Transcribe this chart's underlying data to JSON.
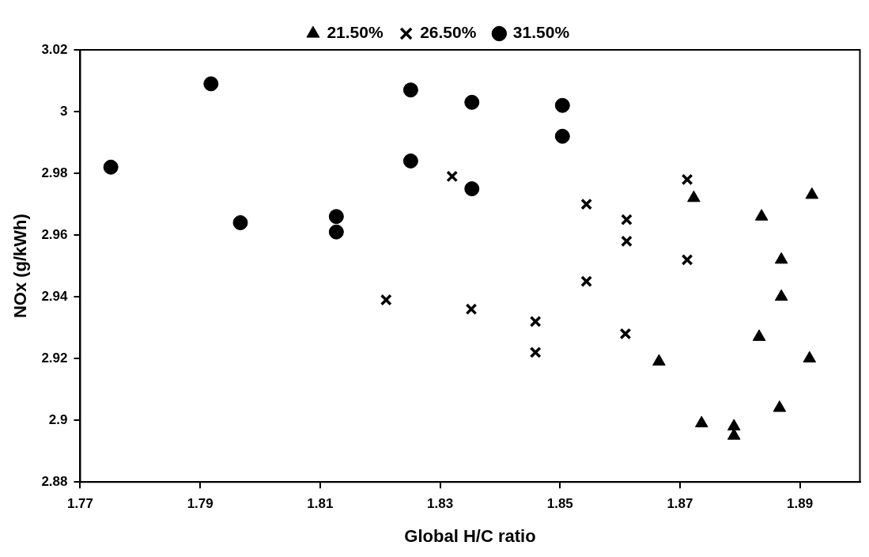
{
  "chart_data": {
    "type": "scatter",
    "xlabel": "Global H/C ratio",
    "ylabel": "NOx (g/kWh)",
    "xlim": [
      1.77,
      1.9
    ],
    "xticks": [
      1.77,
      1.79,
      1.81,
      1.83,
      1.85,
      1.87,
      1.89
    ],
    "ylim": [
      2.88,
      3.02
    ],
    "yticks": [
      2.88,
      2.9,
      2.92,
      2.94,
      2.96,
      2.98,
      3,
      3.02
    ],
    "grid": false,
    "legend": "top",
    "series": [
      {
        "name": "21.50%",
        "color": "#000000",
        "marker": "triangle",
        "x": [
          1.8723,
          1.892,
          1.8836,
          1.8869,
          1.8869,
          1.8832,
          1.8665,
          1.8916,
          1.8866,
          1.8736,
          1.879,
          1.879
        ],
        "values": [
          2.972,
          2.973,
          2.966,
          2.952,
          2.94,
          2.927,
          2.919,
          2.92,
          2.904,
          2.899,
          2.898,
          2.895
        ]
      },
      {
        "name": "26.50%",
        "color": "#000000",
        "marker": "cross",
        "x": [
          1.821,
          1.832,
          1.8544,
          1.8611,
          1.8611,
          1.8712,
          1.8712,
          1.8544,
          1.8352,
          1.8459,
          1.8459,
          1.8609
        ],
        "values": [
          2.939,
          2.979,
          2.97,
          2.965,
          2.958,
          2.978,
          2.952,
          2.945,
          2.936,
          2.932,
          2.922,
          2.928
        ]
      },
      {
        "name": "31.50%",
        "color": "#000000",
        "marker": "circle",
        "x": [
          1.7751,
          1.7918,
          1.7967,
          1.8127,
          1.8127,
          1.8251,
          1.8251,
          1.8353,
          1.8504,
          1.8504,
          1.8353
        ],
        "values": [
          2.982,
          3.009,
          2.964,
          2.966,
          2.961,
          3.007,
          2.984,
          3.003,
          3.002,
          2.992,
          2.975
        ]
      }
    ]
  }
}
